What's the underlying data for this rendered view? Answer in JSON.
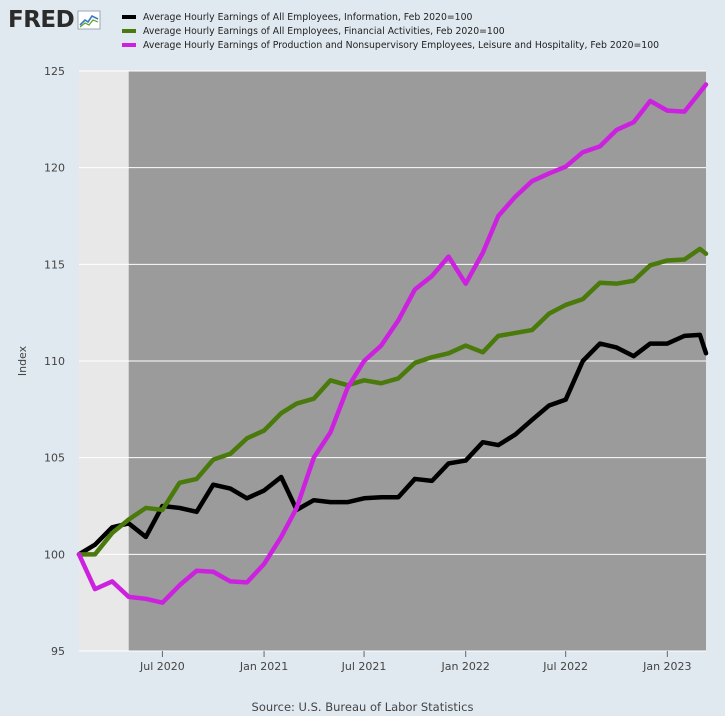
{
  "logo": {
    "text": "FRED"
  },
  "chart_data": {
    "type": "line",
    "ylabel": "Index",
    "xlabel": "",
    "ylim": [
      95,
      125
    ],
    "yticks": [
      95,
      100,
      105,
      110,
      115,
      120,
      125
    ],
    "xticks": [
      {
        "label": "Jul 2020",
        "date": "2020-07-01"
      },
      {
        "label": "Jan 2021",
        "date": "2021-01-01"
      },
      {
        "label": "Jul 2021",
        "date": "2021-07-01"
      },
      {
        "label": "Jan 2022",
        "date": "2022-01-01"
      },
      {
        "label": "Jul 2022",
        "date": "2022-07-01"
      },
      {
        "label": "Jan 2023",
        "date": "2023-01-01"
      }
    ],
    "x": [
      "2020-02",
      "2020-03",
      "2020-04",
      "2020-05",
      "2020-06",
      "2020-07",
      "2020-08",
      "2020-09",
      "2020-10",
      "2020-11",
      "2020-12",
      "2021-01",
      "2021-02",
      "2021-03",
      "2021-04",
      "2021-05",
      "2021-06",
      "2021-07",
      "2021-08",
      "2021-09",
      "2021-10",
      "2021-11",
      "2021-12",
      "2022-01",
      "2022-02",
      "2022-03",
      "2022-04",
      "2022-05",
      "2022-06",
      "2022-07",
      "2022-08",
      "2022-09",
      "2022-10",
      "2022-11",
      "2022-12",
      "2023-01",
      "2023-02",
      "2023-03"
    ],
    "recession": {
      "start": "2020-02",
      "end": "2020-04"
    },
    "series": [
      {
        "name": "Average Hourly Earnings of All Employees, Information, Feb 2020=100",
        "color": "#000000",
        "values": [
          100.0,
          100.5,
          101.4,
          101.6,
          100.9,
          102.5,
          102.4,
          102.2,
          103.6,
          103.4,
          102.9,
          103.3,
          104.0,
          102.3,
          102.8,
          102.7,
          102.7,
          102.9,
          102.95,
          102.95,
          103.9,
          103.8,
          104.7,
          104.85,
          105.8,
          105.65,
          106.2,
          106.95,
          107.7,
          108.0,
          110.0,
          110.9,
          110.7,
          110.25,
          110.9,
          110.9,
          111.3,
          111.35
        ]
      },
      {
        "name": "Average Hourly Earnings of All Employees, Financial Activities, Feb 2020=100",
        "color": "#4a7a0c",
        "values": [
          100.0,
          100.0,
          101.1,
          101.8,
          102.4,
          102.3,
          103.7,
          103.9,
          104.9,
          105.2,
          106.0,
          106.4,
          107.3,
          107.8,
          108.05,
          109.0,
          108.75,
          109.0,
          108.85,
          109.1,
          109.9,
          110.2,
          110.4,
          110.8,
          110.45,
          111.3,
          111.45,
          111.6,
          112.45,
          112.9,
          113.2,
          114.05,
          114.0,
          114.15,
          114.95,
          115.2,
          115.25,
          115.8
        ]
      },
      {
        "name": "Average Hourly Earnings of Production and Nonsupervisory Employees, Leisure and Hospitality, Feb 2020=100",
        "color": "#cc22e0",
        "values": [
          100.0,
          98.2,
          98.6,
          97.8,
          97.7,
          97.5,
          98.4,
          99.15,
          99.1,
          98.6,
          98.55,
          99.5,
          100.9,
          102.4,
          105.0,
          106.3,
          108.6,
          110.0,
          110.8,
          112.1,
          113.7,
          114.4,
          115.4,
          114.0,
          115.6,
          117.5,
          118.5,
          119.3,
          119.7,
          120.05,
          120.8,
          121.1,
          121.95,
          122.35,
          123.45,
          122.95,
          122.9,
          123.9
        ]
      }
    ],
    "last_values": [
      110.4,
      115.55,
      124.3
    ]
  },
  "source": "Source: U.S. Bureau of Labor Statistics"
}
